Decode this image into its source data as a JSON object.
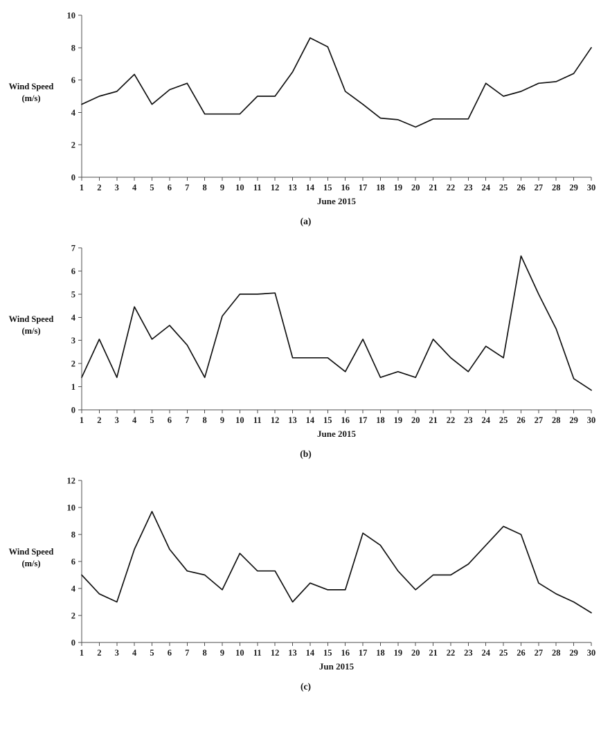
{
  "chart_data": [
    {
      "type": "line",
      "caption": "(a)",
      "ylabel_line1": "Wind Speed",
      "ylabel_line2": "(m/s)",
      "xlabel": "June 2015",
      "ylim": [
        0,
        10
      ],
      "ytick_step": 2,
      "x": [
        1,
        2,
        3,
        4,
        5,
        6,
        7,
        8,
        9,
        10,
        11,
        12,
        13,
        14,
        15,
        16,
        17,
        18,
        19,
        20,
        21,
        22,
        23,
        24,
        25,
        26,
        27,
        28,
        29,
        30
      ],
      "values": [
        4.5,
        5.0,
        5.3,
        6.35,
        4.5,
        5.4,
        5.8,
        3.9,
        3.9,
        3.9,
        5.0,
        5.0,
        6.5,
        8.6,
        8.05,
        5.3,
        4.5,
        3.65,
        3.55,
        3.1,
        3.6,
        3.6,
        3.6,
        5.8,
        5.0,
        5.3,
        5.8,
        5.9,
        6.4,
        8.0
      ]
    },
    {
      "type": "line",
      "caption": "(b)",
      "ylabel_line1": "Wind Speed",
      "ylabel_line2": "(m/s)",
      "xlabel": "June 2015",
      "ylim": [
        0,
        7
      ],
      "ytick_step": 1,
      "x": [
        1,
        2,
        3,
        4,
        5,
        6,
        7,
        8,
        9,
        10,
        11,
        12,
        13,
        14,
        15,
        16,
        17,
        18,
        19,
        20,
        21,
        22,
        23,
        24,
        25,
        26,
        27,
        28,
        29,
        30
      ],
      "values": [
        1.4,
        3.05,
        1.4,
        4.45,
        3.05,
        3.65,
        2.8,
        1.4,
        4.05,
        5.0,
        5.0,
        5.05,
        2.25,
        2.25,
        2.25,
        1.65,
        3.05,
        1.4,
        1.65,
        1.4,
        3.05,
        2.25,
        1.65,
        2.75,
        2.25,
        6.65,
        5.0,
        3.5,
        1.35,
        0.85
      ]
    },
    {
      "type": "line",
      "caption": "(c)",
      "ylabel_line1": "Wind Speed",
      "ylabel_line2": "(m/s)",
      "xlabel": "Jun 2015",
      "ylim": [
        0,
        12
      ],
      "ytick_step": 2,
      "x": [
        1,
        2,
        3,
        4,
        5,
        6,
        7,
        8,
        9,
        10,
        11,
        12,
        13,
        14,
        15,
        16,
        17,
        18,
        19,
        20,
        21,
        22,
        23,
        24,
        25,
        26,
        27,
        28,
        29,
        30
      ],
      "values": [
        5.0,
        3.6,
        3.0,
        6.9,
        9.7,
        6.9,
        5.3,
        5.0,
        3.9,
        6.6,
        5.3,
        5.3,
        3.0,
        4.4,
        3.9,
        3.9,
        8.1,
        7.2,
        5.3,
        3.9,
        5.0,
        5.0,
        5.8,
        7.2,
        8.6,
        8.0,
        4.4,
        3.6,
        3.0,
        2.2
      ]
    }
  ]
}
